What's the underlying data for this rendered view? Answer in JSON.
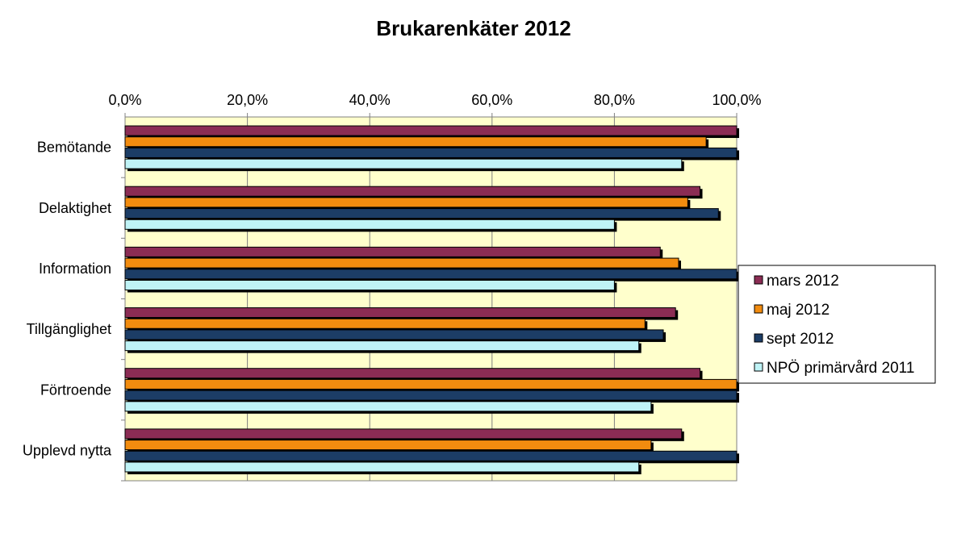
{
  "chart_data": {
    "type": "bar",
    "orientation": "horizontal",
    "title": "Brukarenkäter 2012",
    "xlim": [
      0,
      100
    ],
    "x_ticks": [
      0,
      20,
      40,
      60,
      80,
      100
    ],
    "x_tick_labels": [
      "0,0%",
      "20,0%",
      "40,0%",
      "60,0%",
      "80,0%",
      "100,0%"
    ],
    "axis_position": "top",
    "categories": [
      "Bemötande",
      "Delaktighet",
      "Information",
      "Tillgänglighet",
      "Förtroende",
      "Upplevd nytta"
    ],
    "series": [
      {
        "name": "mars 2012",
        "color": "#8b2c54",
        "values": [
          100,
          94,
          87.5,
          90,
          94,
          91
        ]
      },
      {
        "name": "maj 2012",
        "color": "#f28c0f",
        "values": [
          95,
          92,
          90.5,
          85,
          100,
          86
        ]
      },
      {
        "name": "sept 2012",
        "color": "#1c3d66",
        "values": [
          100,
          97,
          100,
          88,
          100,
          100
        ]
      },
      {
        "name": "NPÖ primärvård 2011",
        "color": "#bff3f6",
        "values": [
          91,
          80,
          80,
          84,
          86,
          84
        ]
      }
    ],
    "plot_background": "#ffffcc",
    "grid": true,
    "legend_position": "right"
  }
}
